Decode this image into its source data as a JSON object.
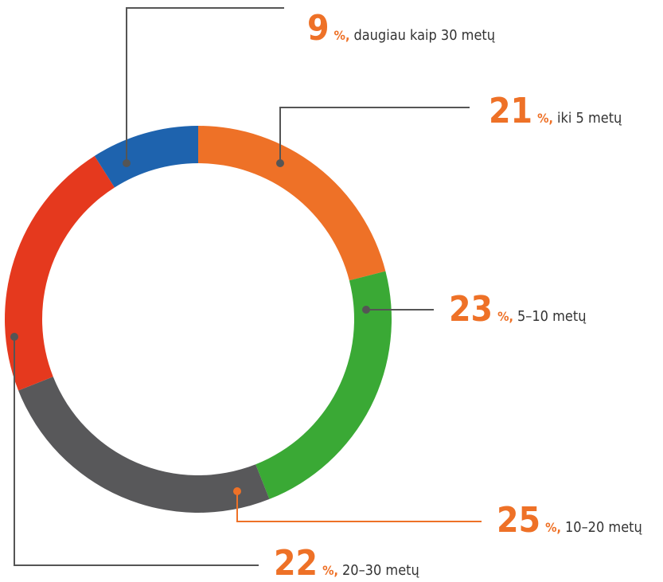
{
  "chart_data": {
    "type": "donut",
    "categories": [
      "iki 5 metų",
      "5–10 metų",
      "10–20 metų",
      "20–30 metų",
      "daugiau kaip 30 metų"
    ],
    "values": [
      21,
      23,
      25,
      22,
      9
    ],
    "unit": "%,",
    "colors": [
      "#ee7127",
      "#3aa935",
      "#58585a",
      "#e5391e",
      "#1e63ae"
    ]
  }
}
